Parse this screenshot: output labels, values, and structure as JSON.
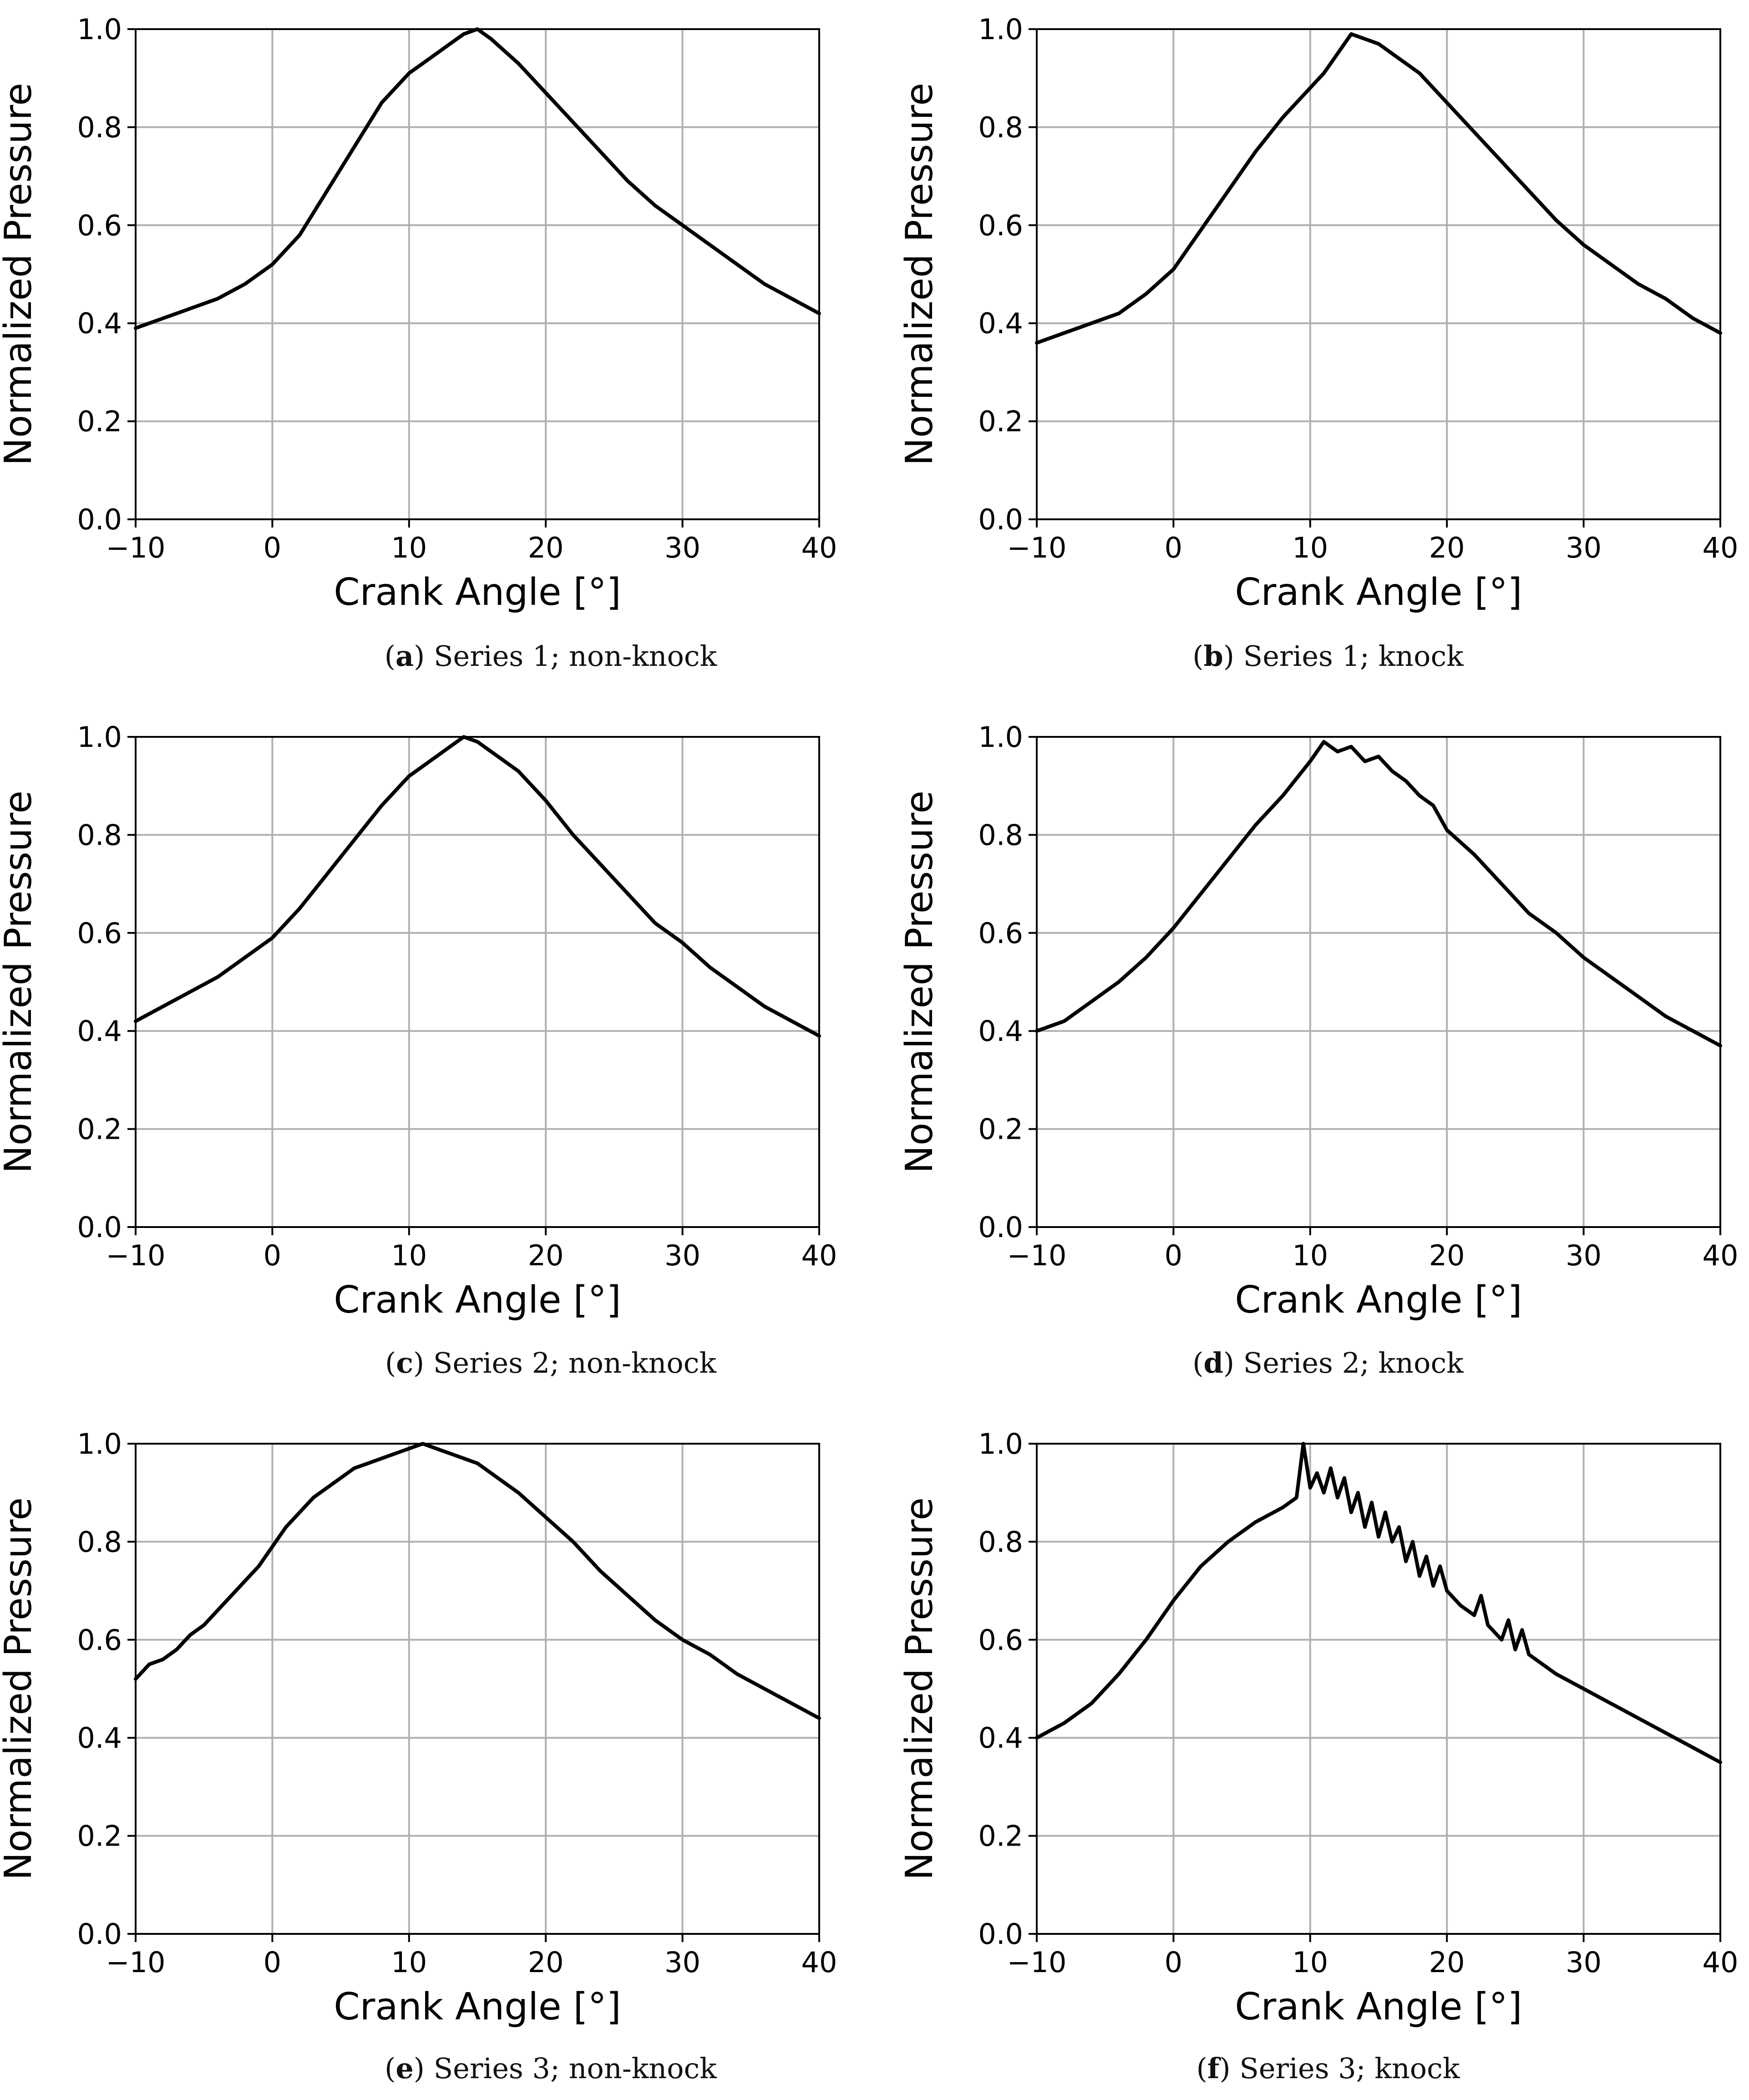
{
  "chart_data": [
    {
      "type": "line",
      "caption": {
        "letter": "a",
        "text": "Series 1; non-knock"
      },
      "xlabel": "Crank Angle [°]",
      "ylabel": "Normalized Pressure",
      "xlim": [
        -10,
        40
      ],
      "ylim": [
        0.0,
        1.0
      ],
      "xticks": [
        "−10",
        "0",
        "10",
        "20",
        "30",
        "40"
      ],
      "yticks": [
        "0.0",
        "0.2",
        "0.4",
        "0.6",
        "0.8",
        "1.0"
      ],
      "grid": true,
      "line_color": "#000000",
      "series": [
        {
          "x": [
            -10,
            -8,
            -6,
            -4,
            -2,
            0,
            2,
            4,
            6,
            8,
            10,
            12,
            13,
            14,
            15,
            16,
            18,
            20,
            22,
            24,
            26,
            28,
            30,
            32,
            34,
            36,
            38,
            40
          ],
          "y": [
            0.39,
            0.41,
            0.43,
            0.45,
            0.48,
            0.52,
            0.58,
            0.67,
            0.76,
            0.85,
            0.91,
            0.95,
            0.97,
            0.99,
            1.0,
            0.98,
            0.93,
            0.87,
            0.81,
            0.75,
            0.69,
            0.64,
            0.6,
            0.56,
            0.52,
            0.48,
            0.45,
            0.42
          ]
        }
      ]
    },
    {
      "type": "line",
      "caption": {
        "letter": "b",
        "text": "Series 1; knock"
      },
      "xlabel": "Crank Angle [°]",
      "ylabel": "Normalized Pressure",
      "xlim": [
        -10,
        40
      ],
      "ylim": [
        0.0,
        1.0
      ],
      "xticks": [
        "−10",
        "0",
        "10",
        "20",
        "30",
        "40"
      ],
      "yticks": [
        "0.0",
        "0.2",
        "0.4",
        "0.6",
        "0.8",
        "1.0"
      ],
      "grid": true,
      "line_color": "#000000",
      "series": [
        {
          "x": [
            -10,
            -8,
            -6,
            -4,
            -2,
            0,
            2,
            4,
            6,
            8,
            10,
            11,
            12,
            13,
            14,
            15,
            16,
            17,
            18,
            20,
            22,
            24,
            26,
            28,
            30,
            32,
            34,
            36,
            38,
            40
          ],
          "y": [
            0.36,
            0.38,
            0.4,
            0.42,
            0.46,
            0.51,
            0.59,
            0.67,
            0.75,
            0.82,
            0.88,
            0.91,
            0.95,
            0.99,
            0.98,
            0.97,
            0.95,
            0.93,
            0.91,
            0.85,
            0.79,
            0.73,
            0.67,
            0.61,
            0.56,
            0.52,
            0.48,
            0.45,
            0.41,
            0.38
          ]
        }
      ]
    },
    {
      "type": "line",
      "caption": {
        "letter": "c",
        "text": "Series 2; non-knock"
      },
      "xlabel": "Crank Angle [°]",
      "ylabel": "Normalized Pressure",
      "xlim": [
        -10,
        40
      ],
      "ylim": [
        0.0,
        1.0
      ],
      "xticks": [
        "−10",
        "0",
        "10",
        "20",
        "30",
        "40"
      ],
      "yticks": [
        "0.0",
        "0.2",
        "0.4",
        "0.6",
        "0.8",
        "1.0"
      ],
      "grid": true,
      "line_color": "#000000",
      "series": [
        {
          "x": [
            -10,
            -8,
            -6,
            -4,
            -2,
            0,
            2,
            4,
            6,
            8,
            10,
            12,
            13,
            14,
            15,
            16,
            18,
            20,
            22,
            24,
            26,
            28,
            30,
            32,
            34,
            36,
            38,
            40
          ],
          "y": [
            0.42,
            0.45,
            0.48,
            0.51,
            0.55,
            0.59,
            0.65,
            0.72,
            0.79,
            0.86,
            0.92,
            0.96,
            0.98,
            1.0,
            0.99,
            0.97,
            0.93,
            0.87,
            0.8,
            0.74,
            0.68,
            0.62,
            0.58,
            0.53,
            0.49,
            0.45,
            0.42,
            0.39
          ]
        }
      ]
    },
    {
      "type": "line",
      "caption": {
        "letter": "d",
        "text": "Series 2; knock"
      },
      "xlabel": "Crank Angle [°]",
      "ylabel": "Normalized Pressure",
      "xlim": [
        -10,
        40
      ],
      "ylim": [
        0.0,
        1.0
      ],
      "xticks": [
        "−10",
        "0",
        "10",
        "20",
        "30",
        "40"
      ],
      "yticks": [
        "0.0",
        "0.2",
        "0.4",
        "0.6",
        "0.8",
        "1.0"
      ],
      "grid": true,
      "line_color": "#000000",
      "series": [
        {
          "x": [
            -10,
            -8,
            -6,
            -4,
            -2,
            0,
            2,
            4,
            6,
            8,
            10,
            11,
            12,
            13,
            14,
            15,
            16,
            17,
            18,
            19,
            20,
            22,
            24,
            26,
            28,
            30,
            32,
            34,
            36,
            38,
            40
          ],
          "y": [
            0.4,
            0.42,
            0.46,
            0.5,
            0.55,
            0.61,
            0.68,
            0.75,
            0.82,
            0.88,
            0.95,
            0.99,
            0.97,
            0.98,
            0.95,
            0.96,
            0.93,
            0.91,
            0.88,
            0.86,
            0.81,
            0.76,
            0.7,
            0.64,
            0.6,
            0.55,
            0.51,
            0.47,
            0.43,
            0.4,
            0.37
          ]
        }
      ]
    },
    {
      "type": "line",
      "caption": {
        "letter": "e",
        "text": "Series 3; non-knock"
      },
      "xlabel": "Crank Angle [°]",
      "ylabel": "Normalized Pressure",
      "xlim": [
        -10,
        40
      ],
      "ylim": [
        0.0,
        1.0
      ],
      "xticks": [
        "−10",
        "0",
        "10",
        "20",
        "30",
        "40"
      ],
      "yticks": [
        "0.0",
        "0.2",
        "0.4",
        "0.6",
        "0.8",
        "1.0"
      ],
      "grid": true,
      "line_color": "#000000",
      "series": [
        {
          "x": [
            -10,
            -9,
            -8,
            -7,
            -6,
            -5,
            -4,
            -3,
            -2,
            -1,
            0,
            1,
            2,
            3,
            4,
            5,
            6,
            7,
            8,
            9,
            10,
            11,
            12,
            13,
            14,
            15,
            16,
            18,
            20,
            22,
            24,
            26,
            28,
            30,
            32,
            34,
            36,
            38,
            40
          ],
          "y": [
            0.52,
            0.55,
            0.56,
            0.58,
            0.61,
            0.63,
            0.66,
            0.69,
            0.72,
            0.75,
            0.79,
            0.83,
            0.86,
            0.89,
            0.91,
            0.93,
            0.95,
            0.96,
            0.97,
            0.98,
            0.99,
            1.0,
            0.99,
            0.98,
            0.97,
            0.96,
            0.94,
            0.9,
            0.85,
            0.8,
            0.74,
            0.69,
            0.64,
            0.6,
            0.57,
            0.53,
            0.5,
            0.47,
            0.44
          ]
        }
      ]
    },
    {
      "type": "line",
      "caption": {
        "letter": "f",
        "text": "Series 3; knock"
      },
      "xlabel": "Crank Angle [°]",
      "ylabel": "Normalized Pressure",
      "xlim": [
        -10,
        40
      ],
      "ylim": [
        0.0,
        1.0
      ],
      "xticks": [
        "−10",
        "0",
        "10",
        "20",
        "30",
        "40"
      ],
      "yticks": [
        "0.0",
        "0.2",
        "0.4",
        "0.6",
        "0.8",
        "1.0"
      ],
      "grid": true,
      "line_color": "#000000",
      "series": [
        {
          "x": [
            -10,
            -8,
            -6,
            -4,
            -2,
            0,
            2,
            4,
            6,
            8,
            9,
            9.5,
            10,
            10.5,
            11,
            11.5,
            12,
            12.5,
            13,
            13.5,
            14,
            14.5,
            15,
            15.5,
            16,
            16.5,
            17,
            17.5,
            18,
            18.5,
            19,
            19.5,
            20,
            21,
            22,
            22.5,
            23,
            24,
            24.5,
            25,
            25.5,
            26,
            27,
            28,
            30,
            32,
            34,
            36,
            38,
            40
          ],
          "y": [
            0.4,
            0.43,
            0.47,
            0.53,
            0.6,
            0.68,
            0.75,
            0.8,
            0.84,
            0.87,
            0.89,
            1.0,
            0.91,
            0.94,
            0.9,
            0.95,
            0.89,
            0.93,
            0.86,
            0.9,
            0.83,
            0.88,
            0.81,
            0.86,
            0.8,
            0.83,
            0.76,
            0.8,
            0.73,
            0.77,
            0.71,
            0.75,
            0.7,
            0.67,
            0.65,
            0.69,
            0.63,
            0.6,
            0.64,
            0.58,
            0.62,
            0.57,
            0.55,
            0.53,
            0.5,
            0.47,
            0.44,
            0.41,
            0.38,
            0.35
          ]
        }
      ]
    }
  ]
}
